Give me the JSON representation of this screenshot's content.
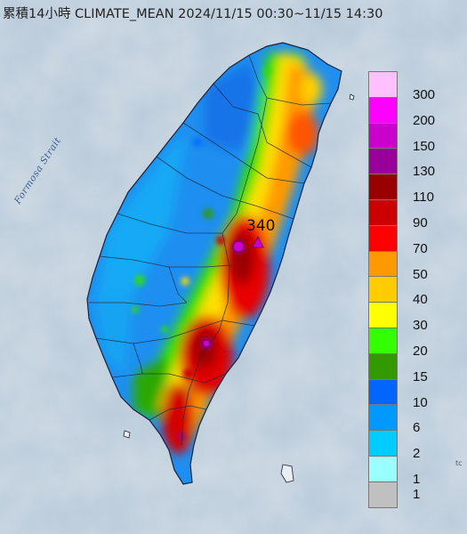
{
  "title": "累積14小時 CLIMATE_MEAN 2024/11/15 00:30~11/15 14:30",
  "strait_label": "Formosa Strait",
  "peak_label": "340",
  "corner_mark": "tc",
  "colors": {
    "sea": "#b9cad9",
    "outline": "#22304a",
    "peak_marker": "#c000e0"
  },
  "legend": [
    {
      "label": "300",
      "color": "#ffc0ff"
    },
    {
      "label": "200",
      "color": "#ff00ff"
    },
    {
      "label": "150",
      "color": "#cc00cc"
    },
    {
      "label": "130",
      "color": "#990099"
    },
    {
      "label": "110",
      "color": "#990000"
    },
    {
      "label": "90",
      "color": "#cc0000"
    },
    {
      "label": "70",
      "color": "#ff0000"
    },
    {
      "label": "50",
      "color": "#ff9900"
    },
    {
      "label": "40",
      "color": "#ffcc00"
    },
    {
      "label": "30",
      "color": "#ffff00"
    },
    {
      "label": "20",
      "color": "#33ff00"
    },
    {
      "label": "15",
      "color": "#339900"
    },
    {
      "label": "10",
      "color": "#0066ff"
    },
    {
      "label": "6",
      "color": "#0099ff"
    },
    {
      "label": "2",
      "color": "#00ccff"
    },
    {
      "label": "1",
      "color": "#99ffff"
    },
    {
      "label": "",
      "color": "#c0c0c0"
    }
  ]
}
